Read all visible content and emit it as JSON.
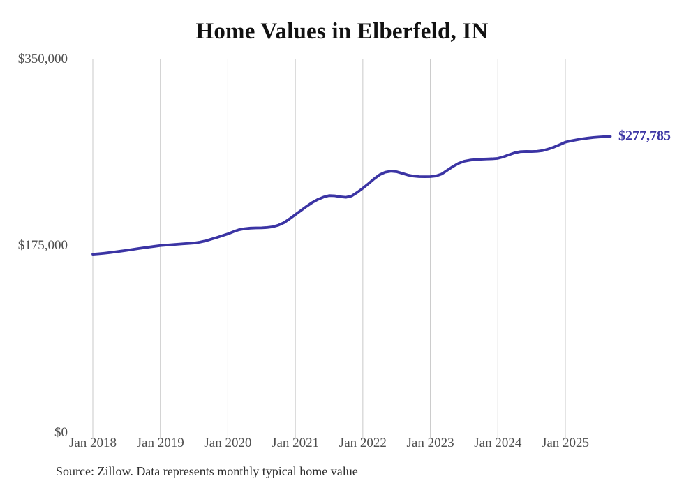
{
  "chart_data": {
    "type": "line",
    "title": "Home Values in Elberfeld, IN",
    "series_name": "Typical home value",
    "x_start_month": "Jan 2018",
    "x_end_month": "Sep 2025",
    "x_tick_labels": [
      "Jan 2018",
      "Jan 2019",
      "Jan 2020",
      "Jan 2021",
      "Jan 2022",
      "Jan 2023",
      "Jan 2024",
      "Jan 2025"
    ],
    "x_months_per_tick": 12,
    "y_tick_labels": [
      "$0",
      "$175,000",
      "$350,000"
    ],
    "y_tick_values": [
      0,
      175000,
      350000
    ],
    "ylim": [
      0,
      350000
    ],
    "grid": "vertical-only",
    "legend": "none",
    "line_color": "#3b34a4",
    "gridline_color": "#c8c8c8",
    "end_label": "$277,785",
    "final_value": 277785,
    "values": [
      167400,
      167800,
      168300,
      168900,
      169600,
      170300,
      171000,
      171800,
      172600,
      173400,
      174100,
      174800,
      175500,
      175900,
      176300,
      176700,
      177100,
      177500,
      177900,
      178700,
      179800,
      181400,
      183000,
      184700,
      186400,
      188500,
      190300,
      191300,
      191800,
      192000,
      192100,
      192400,
      193100,
      194600,
      197000,
      200600,
      204500,
      208300,
      212200,
      215800,
      218700,
      220900,
      222300,
      222100,
      221200,
      220700,
      221900,
      225300,
      229200,
      233500,
      238000,
      241900,
      244300,
      245200,
      244700,
      243200,
      241600,
      240600,
      240100,
      240000,
      240100,
      240700,
      242500,
      246000,
      249500,
      252500,
      254500,
      255500,
      256100,
      256400,
      256600,
      256800,
      257200,
      258600,
      260600,
      262400,
      263500,
      263700,
      263600,
      263800,
      264500,
      266000,
      267800,
      270000,
      272400,
      273600,
      274600,
      275500,
      276200,
      276800,
      277200,
      277500,
      277785
    ]
  },
  "footer": {
    "source": "Source: Zillow. Data represents monthly typical home value"
  }
}
